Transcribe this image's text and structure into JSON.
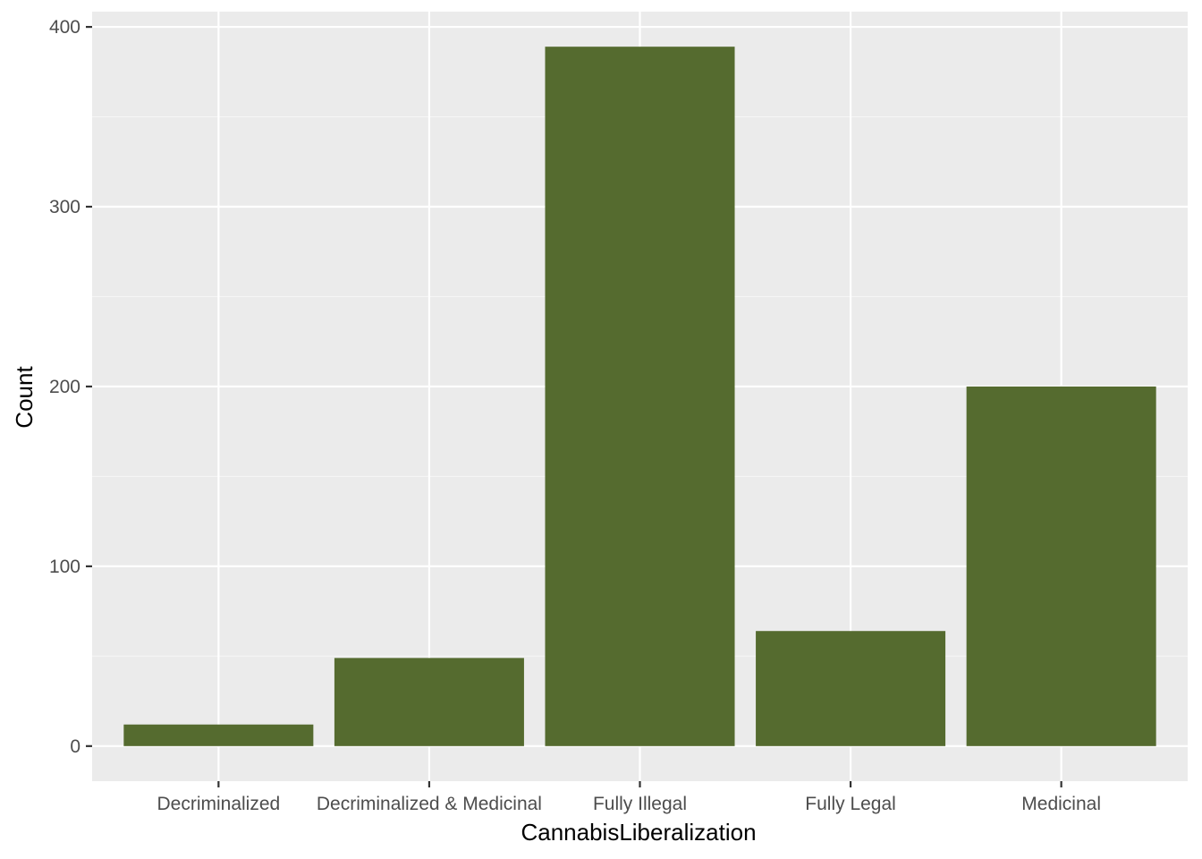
{
  "chart_data": {
    "type": "bar",
    "categories": [
      "Decriminalized",
      "Decriminalized & Medicinal",
      "Fully Illegal",
      "Fully Legal",
      "Medicinal"
    ],
    "values": [
      12,
      49,
      389,
      64,
      200
    ],
    "title": "",
    "xlabel": "CannabisLiberalization",
    "ylabel": "Count",
    "ylim": [
      -19.5,
      408.5
    ],
    "yticks": [
      0,
      100,
      200,
      300,
      400
    ],
    "ytick_labels": [
      "0",
      "100",
      "200",
      "300",
      "400"
    ],
    "grid": true,
    "legend": "none",
    "colors": {
      "bar": "#556B2F",
      "panel_background": "#EBEBEB",
      "grid_major": "#FFFFFF",
      "grid_minor": "#F5F5F5",
      "tick_label": "#4D4D4D",
      "tick_mark": "#333333",
      "axis_title": "#000000"
    }
  }
}
